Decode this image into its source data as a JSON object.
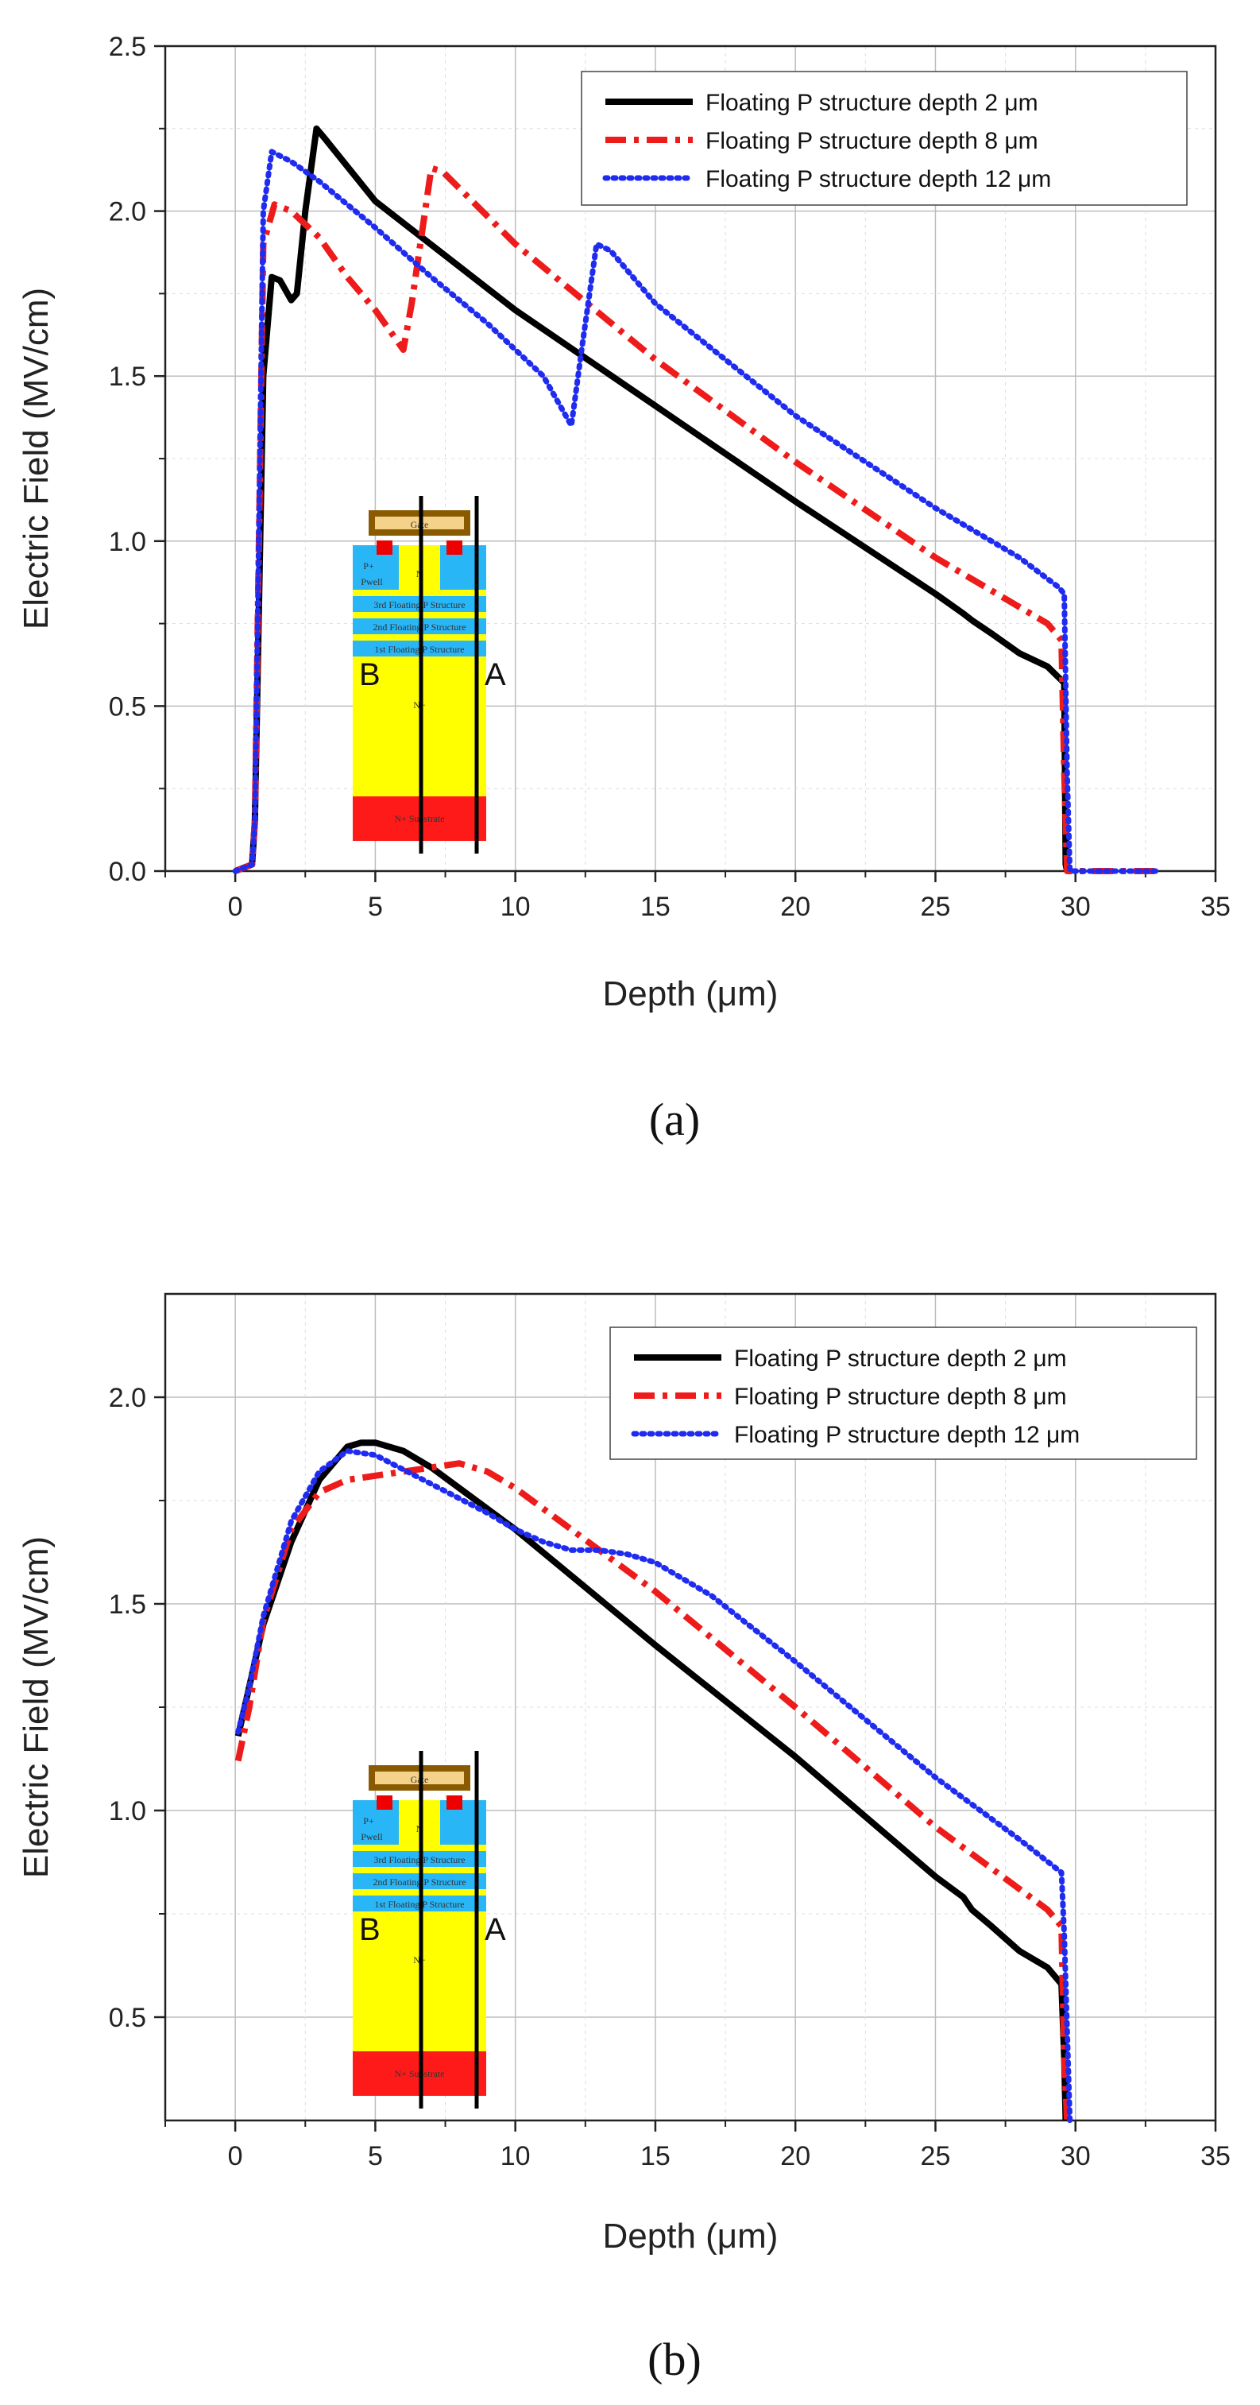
{
  "chart_data": [
    {
      "type": "line",
      "panel_label": "(a)",
      "xlabel": "Depth (μm)",
      "ylabel": "Electric Field (MV/cm)",
      "xlim": [
        -2.5,
        35
      ],
      "ylim": [
        0,
        2.5
      ],
      "xticks": [
        "0",
        "5",
        "10",
        "15",
        "20",
        "25",
        "30",
        "35"
      ],
      "yticks": [
        "0.0",
        "0.5",
        "1.0",
        "1.5",
        "2.0",
        "2.5"
      ],
      "grid": true,
      "legend_position": "top-right",
      "series": [
        {
          "name": "Floating P structure depth 2 μm",
          "color": "#000000",
          "style": "solid",
          "x": [
            0,
            0.6,
            0.7,
            1.0,
            1.3,
            1.6,
            2.0,
            2.2,
            2.5,
            2.9,
            3.2,
            5,
            10,
            15,
            20,
            25,
            26,
            26.3,
            27,
            28,
            29,
            29.6,
            29.65,
            29.7
          ],
          "y": [
            0,
            0.02,
            0.15,
            1.5,
            1.8,
            1.79,
            1.73,
            1.75,
            2.0,
            2.25,
            2.22,
            2.03,
            1.7,
            1.41,
            1.12,
            0.84,
            0.78,
            0.76,
            0.72,
            0.66,
            0.62,
            0.57,
            0.02,
            0
          ]
        },
        {
          "name": "Floating P structure depth 8 μm",
          "color": "#ee1b1b",
          "style": "dashdot",
          "x": [
            0,
            0.6,
            0.7,
            1.0,
            1.4,
            2.0,
            3,
            4,
            5,
            6.0,
            6.3,
            7.0,
            7.4,
            10,
            15,
            20,
            25,
            29.0,
            29.5,
            29.6,
            29.7,
            33
          ],
          "y": [
            0,
            0.02,
            0.15,
            1.9,
            2.02,
            2.0,
            1.92,
            1.8,
            1.7,
            1.58,
            1.72,
            2.13,
            2.12,
            1.9,
            1.55,
            1.24,
            0.95,
            0.75,
            0.7,
            0.3,
            0,
            0
          ]
        },
        {
          "name": "Floating P structure depth 12 μm",
          "color": "#1f2cf0",
          "style": "dotted",
          "x": [
            0,
            0.6,
            0.7,
            1.0,
            1.3,
            2.0,
            3,
            5,
            7,
            9,
            11,
            12.0,
            12.4,
            12.9,
            13.4,
            15,
            20,
            25,
            28,
            29.4,
            29.6,
            29.7,
            29.8,
            33
          ],
          "y": [
            0,
            0.02,
            0.15,
            2.0,
            2.18,
            2.15,
            2.09,
            1.95,
            1.8,
            1.66,
            1.5,
            1.35,
            1.6,
            1.9,
            1.88,
            1.72,
            1.38,
            1.1,
            0.95,
            0.86,
            0.84,
            0.3,
            0,
            0
          ]
        }
      ],
      "inset": {
        "labels": [
          "Gate",
          "P+",
          "Pwell",
          "N",
          "3rd Floating P Structure",
          "2nd Floating P Structure",
          "1st Floating P Structure",
          "N−",
          "N+ Substrate"
        ],
        "cut_b": "B",
        "cut_a": "A"
      }
    },
    {
      "type": "line",
      "panel_label": "(b)",
      "xlabel": "Depth (μm)",
      "ylabel": "Electric Field (MV/cm)",
      "xlim": [
        -2.5,
        35
      ],
      "ylim": [
        0.25,
        2.25
      ],
      "xticks": [
        "0",
        "5",
        "10",
        "15",
        "20",
        "25",
        "30",
        "35"
      ],
      "yticks": [
        "0.5",
        "1.0",
        "1.5",
        "2.0"
      ],
      "grid": true,
      "legend_position": "top-right",
      "series": [
        {
          "name": "Floating P structure depth 2 μm",
          "color": "#000000",
          "style": "solid",
          "x": [
            0.1,
            1,
            2,
            3,
            4,
            4.5,
            5,
            6,
            7,
            8,
            10,
            15,
            20,
            25,
            26,
            26.3,
            27,
            28,
            29,
            29.5,
            29.6,
            29.65
          ],
          "y": [
            1.18,
            1.45,
            1.65,
            1.8,
            1.88,
            1.89,
            1.89,
            1.87,
            1.83,
            1.78,
            1.68,
            1.4,
            1.13,
            0.84,
            0.79,
            0.76,
            0.72,
            0.66,
            0.62,
            0.58,
            0.4,
            0.25
          ]
        },
        {
          "name": "Floating P structure depth 8 μm",
          "color": "#ee1b1b",
          "style": "dashdot",
          "x": [
            0.1,
            0.5,
            1,
            2,
            3,
            4,
            5,
            6,
            7,
            8,
            9,
            10,
            12,
            15,
            20,
            25,
            29.0,
            29.5,
            29.6,
            29.7
          ],
          "y": [
            1.12,
            1.25,
            1.46,
            1.68,
            1.77,
            1.8,
            1.81,
            1.82,
            1.83,
            1.84,
            1.82,
            1.78,
            1.68,
            1.53,
            1.25,
            0.96,
            0.76,
            0.72,
            0.4,
            0.25
          ]
        },
        {
          "name": "Floating P structure depth 12 μm",
          "color": "#1f2cf0",
          "style": "dotted",
          "x": [
            0.1,
            0.5,
            1,
            2,
            3,
            4,
            5,
            7,
            9,
            10,
            11,
            12,
            13,
            14,
            15,
            17,
            20,
            25,
            28,
            29.5,
            29.6,
            29.8
          ],
          "y": [
            1.19,
            1.3,
            1.47,
            1.7,
            1.82,
            1.87,
            1.86,
            1.79,
            1.72,
            1.68,
            1.65,
            1.63,
            1.63,
            1.62,
            1.6,
            1.52,
            1.36,
            1.08,
            0.93,
            0.85,
            0.7,
            0.25
          ]
        }
      ],
      "inset": {
        "labels": [
          "Gate",
          "P+",
          "Pwell",
          "N",
          "3rd Floating P Structure",
          "2nd Floating P Structure",
          "1st Floating P Structure",
          "N−",
          "N+ Substrate"
        ],
        "cut_b": "B",
        "cut_a": "A"
      }
    }
  ]
}
